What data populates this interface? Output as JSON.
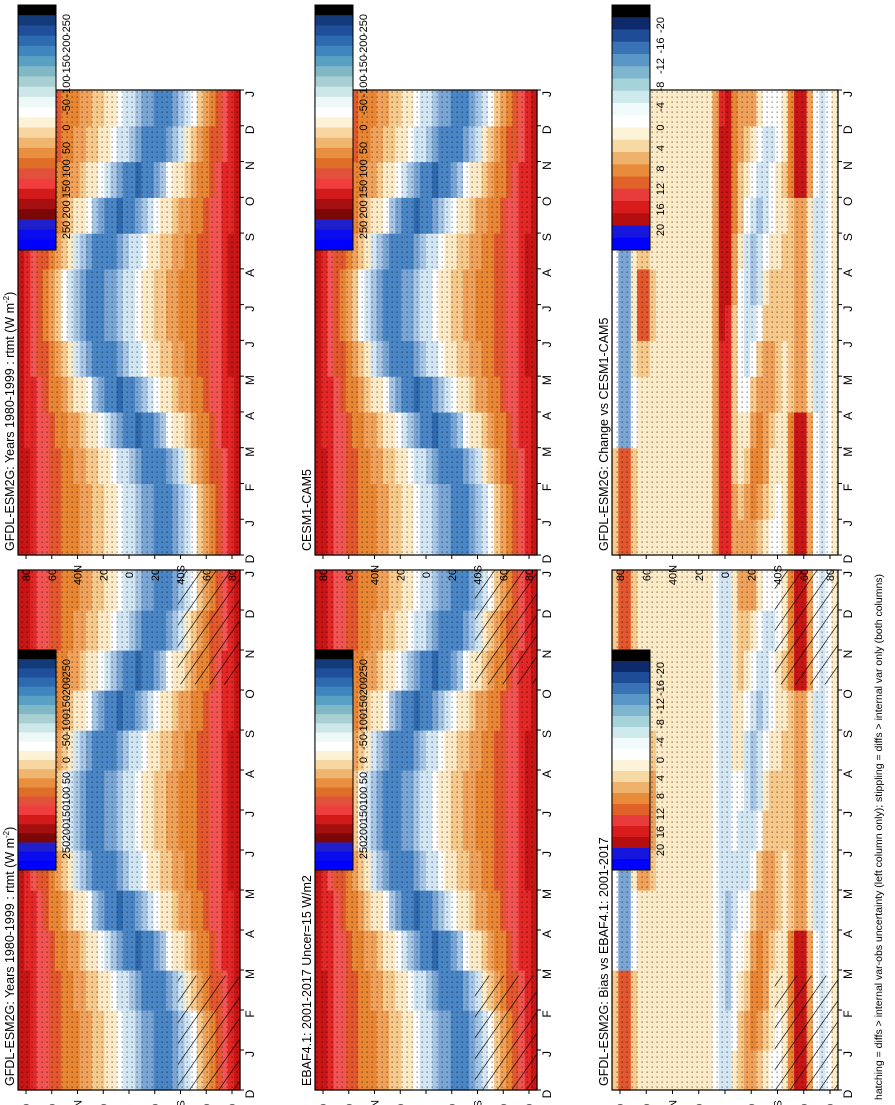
{
  "figure": {
    "footnote": "hatching = diffs > internal var-obs uncertainty (left column only); stippling = diffs > internal var only (both columns)"
  },
  "palette": {
    "field": [
      "#000000",
      "#0c2a60",
      "#1b4f8f",
      "#2f6aae",
      "#4a86c5",
      "#7aa6d6",
      "#a8c7e6",
      "#d3e6f3",
      "#ffffff",
      "#fcebc6",
      "#f7c98b",
      "#f0a25a",
      "#e98633",
      "#e2572e",
      "#f25454",
      "#e32626",
      "#c81515",
      "#a50c0c",
      "#7a0404"
    ],
    "colorbar_field": [
      "#000000",
      "#133a79",
      "#1f4f9a",
      "#2e6ab0",
      "#3f86bf",
      "#5aa0c4",
      "#80b8c6",
      "#a8d0d2",
      "#cde6e8",
      "#eef8f6",
      "#ffffff",
      "#fdf1d6",
      "#f7d6a1",
      "#f0b56e",
      "#e98f40",
      "#df6e28",
      "#e2523a",
      "#f03d3d",
      "#d11a1a",
      "#a50f0f",
      "#7c0707",
      "#1f1fcc",
      "#0b0bf0",
      "#0000ff"
    ],
    "colorbar_diff": [
      "#000000",
      "#0f2a6b",
      "#1e4c96",
      "#3973b6",
      "#5a97c6",
      "#7fb6cf",
      "#a6d2d9",
      "#cfeaec",
      "#f2fbfb",
      "#ffffff",
      "#fdf3d9",
      "#f7d9a3",
      "#efb26c",
      "#e88c3c",
      "#e16229",
      "#e83c3c",
      "#d81b1b",
      "#b40e0e",
      "#1616dd",
      "#0000ff"
    ]
  },
  "chart_data": [
    {
      "type": "heatmap",
      "panel": "top-left",
      "title": "GFDL-ESM2G: Years 1980-1999 : rtmt (W m",
      "title_sup": "-2",
      "title_end": ")",
      "x_ticks": [
        "D",
        "J",
        "F",
        "M",
        "A",
        "M",
        "J",
        "J",
        "A",
        "S",
        "O",
        "N",
        "D",
        "J"
      ],
      "y_ticks": [
        "80",
        "60",
        "40N",
        "20",
        "0",
        "20",
        "40S",
        "60",
        "80"
      ],
      "y_range": [
        -90,
        90
      ],
      "field": "seasonal_net_radiation",
      "hatched": true,
      "colorbar": {
        "labels": [
          "250",
          "200",
          "150",
          "100",
          "50",
          "0",
          "-50",
          "-100",
          "-150",
          "-200",
          "-250"
        ],
        "range": [
          -275,
          275
        ]
      }
    },
    {
      "type": "heatmap",
      "panel": "top-right",
      "title": "GFDL-ESM2G: Years 1980-1999 : rtmt (W m",
      "title_sup": "-2",
      "title_end": ")",
      "x_ticks": [
        "D",
        "J",
        "F",
        "M",
        "A",
        "M",
        "J",
        "J",
        "A",
        "S",
        "O",
        "N",
        "D",
        "J"
      ],
      "y_ticks": [
        "80",
        "60",
        "40N",
        "20",
        "0",
        "20",
        "40S",
        "60",
        "80"
      ],
      "y_range": [
        -90,
        90
      ],
      "field": "seasonal_net_radiation",
      "hatched": false,
      "colorbar": {
        "labels": [
          "250",
          "200",
          "150",
          "100",
          "50",
          "0",
          "-50",
          "-100",
          "-150",
          "-200",
          "-250"
        ],
        "range": [
          -275,
          275
        ]
      }
    },
    {
      "type": "heatmap",
      "panel": "middle-left",
      "title": "EBAF4.1: 2001-2017 Uncer=15 W/m2",
      "title_sup": "",
      "title_end": "",
      "x_ticks": [
        "D",
        "J",
        "F",
        "M",
        "A",
        "M",
        "J",
        "J",
        "A",
        "S",
        "O",
        "N",
        "D",
        "J"
      ],
      "y_ticks": [
        "80",
        "60",
        "40N",
        "20",
        "0",
        "20",
        "40S",
        "60",
        "80"
      ],
      "y_range": [
        -90,
        90
      ],
      "field": "seasonal_net_radiation",
      "hatched": true,
      "colorbar": {
        "labels": [
          "250",
          "200",
          "150",
          "100",
          "50",
          "0",
          "-50",
          "-100",
          "-150",
          "-200",
          "-250"
        ],
        "range": [
          -275,
          275
        ]
      }
    },
    {
      "type": "heatmap",
      "panel": "middle-right",
      "title": "CESM1-CAM5",
      "title_sup": "",
      "title_end": "",
      "x_ticks": [
        "D",
        "J",
        "F",
        "M",
        "A",
        "M",
        "J",
        "J",
        "A",
        "S",
        "O",
        "N",
        "D",
        "J"
      ],
      "y_ticks": [
        "80",
        "60",
        "40N",
        "20",
        "0",
        "20",
        "40S",
        "60",
        "80"
      ],
      "y_range": [
        -90,
        90
      ],
      "field": "seasonal_net_radiation",
      "hatched": false,
      "colorbar": {
        "labels": [
          "250",
          "200",
          "150",
          "100",
          "50",
          "0",
          "-50",
          "-100",
          "-150",
          "-200",
          "-250"
        ],
        "range": [
          -275,
          275
        ]
      }
    },
    {
      "type": "heatmap",
      "panel": "bottom-left",
      "title": "GFDL-ESM2G: Bias vs EBAF4.1: 2001-2017",
      "title_sup": "",
      "title_end": "",
      "x_ticks": [
        "D",
        "J",
        "F",
        "M",
        "A",
        "M",
        "J",
        "J",
        "A",
        "S",
        "O",
        "N",
        "D",
        "J"
      ],
      "y_ticks": [
        "80",
        "60",
        "40N",
        "20",
        "0",
        "20",
        "40S",
        "60",
        "80"
      ],
      "y_range": [
        -90,
        90
      ],
      "field": "bias_difference",
      "hatched": true,
      "colorbar": {
        "labels": [
          "20",
          "16",
          "12",
          "8",
          "4",
          "0",
          "-4",
          "-8",
          "-12",
          "-16",
          "-20"
        ],
        "range": [
          -22,
          22
        ]
      }
    },
    {
      "type": "heatmap",
      "panel": "bottom-right",
      "title": "GFDL-ESM2G: Change vs CESM1-CAM5",
      "title_sup": "",
      "title_end": "",
      "x_ticks": [
        "D",
        "J",
        "F",
        "M",
        "A",
        "M",
        "J",
        "J",
        "A",
        "S",
        "O",
        "N",
        "D",
        "J"
      ],
      "y_ticks": [
        "80",
        "60",
        "40N",
        "20",
        "0",
        "20",
        "40S",
        "60",
        "80"
      ],
      "y_range": [
        -90,
        90
      ],
      "field": "change_difference",
      "hatched": false,
      "colorbar": {
        "labels": [
          "20",
          "16",
          "12",
          "8",
          "4",
          "0",
          "-4",
          "-8",
          "-12",
          "-16",
          "-20"
        ],
        "range": [
          -22,
          22
        ]
      }
    }
  ]
}
